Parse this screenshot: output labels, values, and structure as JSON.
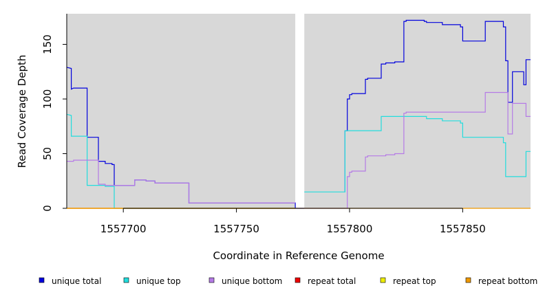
{
  "chart_data": {
    "type": "line",
    "title": "",
    "xlabel": "Coordinate in Reference Genome",
    "ylabel": "Read Coverage Depth",
    "xlim": [
      1557675,
      1557880
    ],
    "ylim": [
      0,
      178
    ],
    "grid": false,
    "background_regions": [
      [
        1557675,
        1557776
      ],
      [
        1557780,
        1557880
      ]
    ],
    "x_ticks": [
      1557700,
      1557750,
      1557800,
      1557850
    ],
    "x_tick_labels": [
      "1557700",
      "1557750",
      "1557800",
      "1557850"
    ],
    "y_ticks": [
      0,
      50,
      100,
      150
    ],
    "y_tick_labels": [
      "0",
      "50",
      "100",
      "150"
    ],
    "legend_position": "bottom",
    "series": [
      {
        "name": "unique total",
        "color": "#0000dd",
        "points": [
          [
            1557675,
            129
          ],
          [
            1557677,
            128
          ],
          [
            1557677,
            109
          ],
          [
            1557678,
            110
          ],
          [
            1557684,
            110
          ],
          [
            1557684,
            65
          ],
          [
            1557689,
            65
          ],
          [
            1557689,
            43
          ],
          [
            1557692,
            43
          ],
          [
            1557692,
            41
          ],
          [
            1557695,
            41
          ],
          [
            1557695,
            40
          ],
          [
            1557696,
            40
          ],
          [
            1557696,
            21
          ],
          [
            1557705,
            21
          ],
          [
            1557705,
            26
          ],
          [
            1557710,
            26
          ],
          [
            1557710,
            25
          ],
          [
            1557714,
            25
          ],
          [
            1557714,
            23
          ],
          [
            1557729,
            23
          ],
          [
            1557729,
            5
          ],
          [
            1557776,
            5
          ],
          [
            1557776,
            0
          ],
          [
            1557780,
            0
          ]
        ]
      },
      {
        "name": "unique total",
        "color": "#0000dd",
        "points": [
          [
            1557798,
            15
          ],
          [
            1557798,
            71
          ],
          [
            1557799,
            71
          ],
          [
            1557799,
            100
          ],
          [
            1557800,
            100
          ],
          [
            1557800,
            104
          ],
          [
            1557801,
            104
          ],
          [
            1557801,
            105
          ],
          [
            1557807,
            105
          ],
          [
            1557807,
            118
          ],
          [
            1557808,
            118
          ],
          [
            1557808,
            119
          ],
          [
            1557814,
            119
          ],
          [
            1557814,
            132
          ],
          [
            1557816,
            132
          ],
          [
            1557816,
            133
          ],
          [
            1557820,
            133
          ],
          [
            1557820,
            134
          ],
          [
            1557824,
            134
          ],
          [
            1557824,
            171
          ],
          [
            1557825,
            171
          ],
          [
            1557825,
            172
          ],
          [
            1557833,
            172
          ],
          [
            1557833,
            171
          ],
          [
            1557834,
            171
          ],
          [
            1557834,
            170
          ],
          [
            1557841,
            170
          ],
          [
            1557841,
            168
          ],
          [
            1557849,
            168
          ],
          [
            1557849,
            166
          ],
          [
            1557850,
            166
          ],
          [
            1557850,
            153
          ],
          [
            1557860,
            153
          ],
          [
            1557860,
            171
          ],
          [
            1557868,
            171
          ],
          [
            1557868,
            166
          ],
          [
            1557869,
            166
          ],
          [
            1557869,
            135
          ],
          [
            1557870,
            135
          ],
          [
            1557870,
            97
          ],
          [
            1557872,
            97
          ],
          [
            1557872,
            125
          ],
          [
            1557877,
            125
          ],
          [
            1557877,
            113
          ],
          [
            1557878,
            113
          ],
          [
            1557878,
            136
          ],
          [
            1557880,
            136
          ]
        ]
      },
      {
        "name": "unique top",
        "color": "#22dddd",
        "points": [
          [
            1557675,
            86
          ],
          [
            1557677,
            85
          ],
          [
            1557677,
            66
          ],
          [
            1557684,
            66
          ],
          [
            1557684,
            21
          ],
          [
            1557692,
            21
          ],
          [
            1557692,
            20
          ],
          [
            1557696,
            20
          ],
          [
            1557696,
            0
          ],
          [
            1557776,
            0
          ]
        ]
      },
      {
        "name": "unique top",
        "color": "#22dddd",
        "points": [
          [
            1557780,
            15
          ],
          [
            1557798,
            15
          ],
          [
            1557798,
            71
          ],
          [
            1557814,
            71
          ],
          [
            1557814,
            84
          ],
          [
            1557834,
            84
          ],
          [
            1557834,
            82
          ],
          [
            1557841,
            82
          ],
          [
            1557841,
            80
          ],
          [
            1557849,
            80
          ],
          [
            1557849,
            78
          ],
          [
            1557850,
            78
          ],
          [
            1557850,
            65
          ],
          [
            1557868,
            65
          ],
          [
            1557868,
            60
          ],
          [
            1557869,
            60
          ],
          [
            1557869,
            29
          ],
          [
            1557878,
            29
          ],
          [
            1557878,
            52
          ],
          [
            1557880,
            52
          ]
        ]
      },
      {
        "name": "unique bottom",
        "color": "#b57ae6",
        "points": [
          [
            1557675,
            43
          ],
          [
            1557678,
            43
          ],
          [
            1557678,
            44
          ],
          [
            1557689,
            44
          ],
          [
            1557689,
            22
          ],
          [
            1557692,
            22
          ],
          [
            1557692,
            21
          ],
          [
            1557705,
            21
          ],
          [
            1557705,
            26
          ],
          [
            1557710,
            26
          ],
          [
            1557710,
            25
          ],
          [
            1557714,
            25
          ],
          [
            1557714,
            23
          ],
          [
            1557729,
            23
          ],
          [
            1557729,
            5
          ],
          [
            1557776,
            5
          ]
        ]
      },
      {
        "name": "unique bottom",
        "color": "#b57ae6",
        "points": [
          [
            1557780,
            0
          ],
          [
            1557799,
            0
          ],
          [
            1557799,
            29
          ],
          [
            1557800,
            29
          ],
          [
            1557800,
            33
          ],
          [
            1557801,
            33
          ],
          [
            1557801,
            34
          ],
          [
            1557807,
            34
          ],
          [
            1557807,
            47
          ],
          [
            1557808,
            47
          ],
          [
            1557808,
            48
          ],
          [
            1557816,
            48
          ],
          [
            1557816,
            49
          ],
          [
            1557820,
            49
          ],
          [
            1557820,
            50
          ],
          [
            1557824,
            50
          ],
          [
            1557824,
            87
          ],
          [
            1557825,
            87
          ],
          [
            1557825,
            88
          ],
          [
            1557860,
            88
          ],
          [
            1557860,
            106
          ],
          [
            1557870,
            106
          ],
          [
            1557870,
            68
          ],
          [
            1557872,
            68
          ],
          [
            1557872,
            96
          ],
          [
            1557878,
            96
          ],
          [
            1557878,
            84
          ],
          [
            1557880,
            84
          ]
        ]
      },
      {
        "name": "repeat total",
        "color": "#ee0000",
        "points": [
          [
            1557675,
            0
          ],
          [
            1557776,
            0
          ]
        ]
      },
      {
        "name": "repeat top",
        "color": "#eeee00",
        "points": [
          [
            1557675,
            0
          ],
          [
            1557776,
            0
          ]
        ]
      },
      {
        "name": "repeat bottom",
        "color": "#ee9900",
        "points": [
          [
            1557675,
            0
          ],
          [
            1557776,
            0
          ],
          [
            1557780,
            0
          ],
          [
            1557880,
            0
          ]
        ]
      }
    ],
    "legend": [
      {
        "label": "unique total",
        "color": "#0000dd"
      },
      {
        "label": "unique top",
        "color": "#22dddd"
      },
      {
        "label": "unique bottom",
        "color": "#b57ae6"
      },
      {
        "label": "repeat total",
        "color": "#ee0000"
      },
      {
        "label": "repeat top",
        "color": "#eeee00"
      },
      {
        "label": "repeat bottom",
        "color": "#ee9900"
      }
    ]
  }
}
